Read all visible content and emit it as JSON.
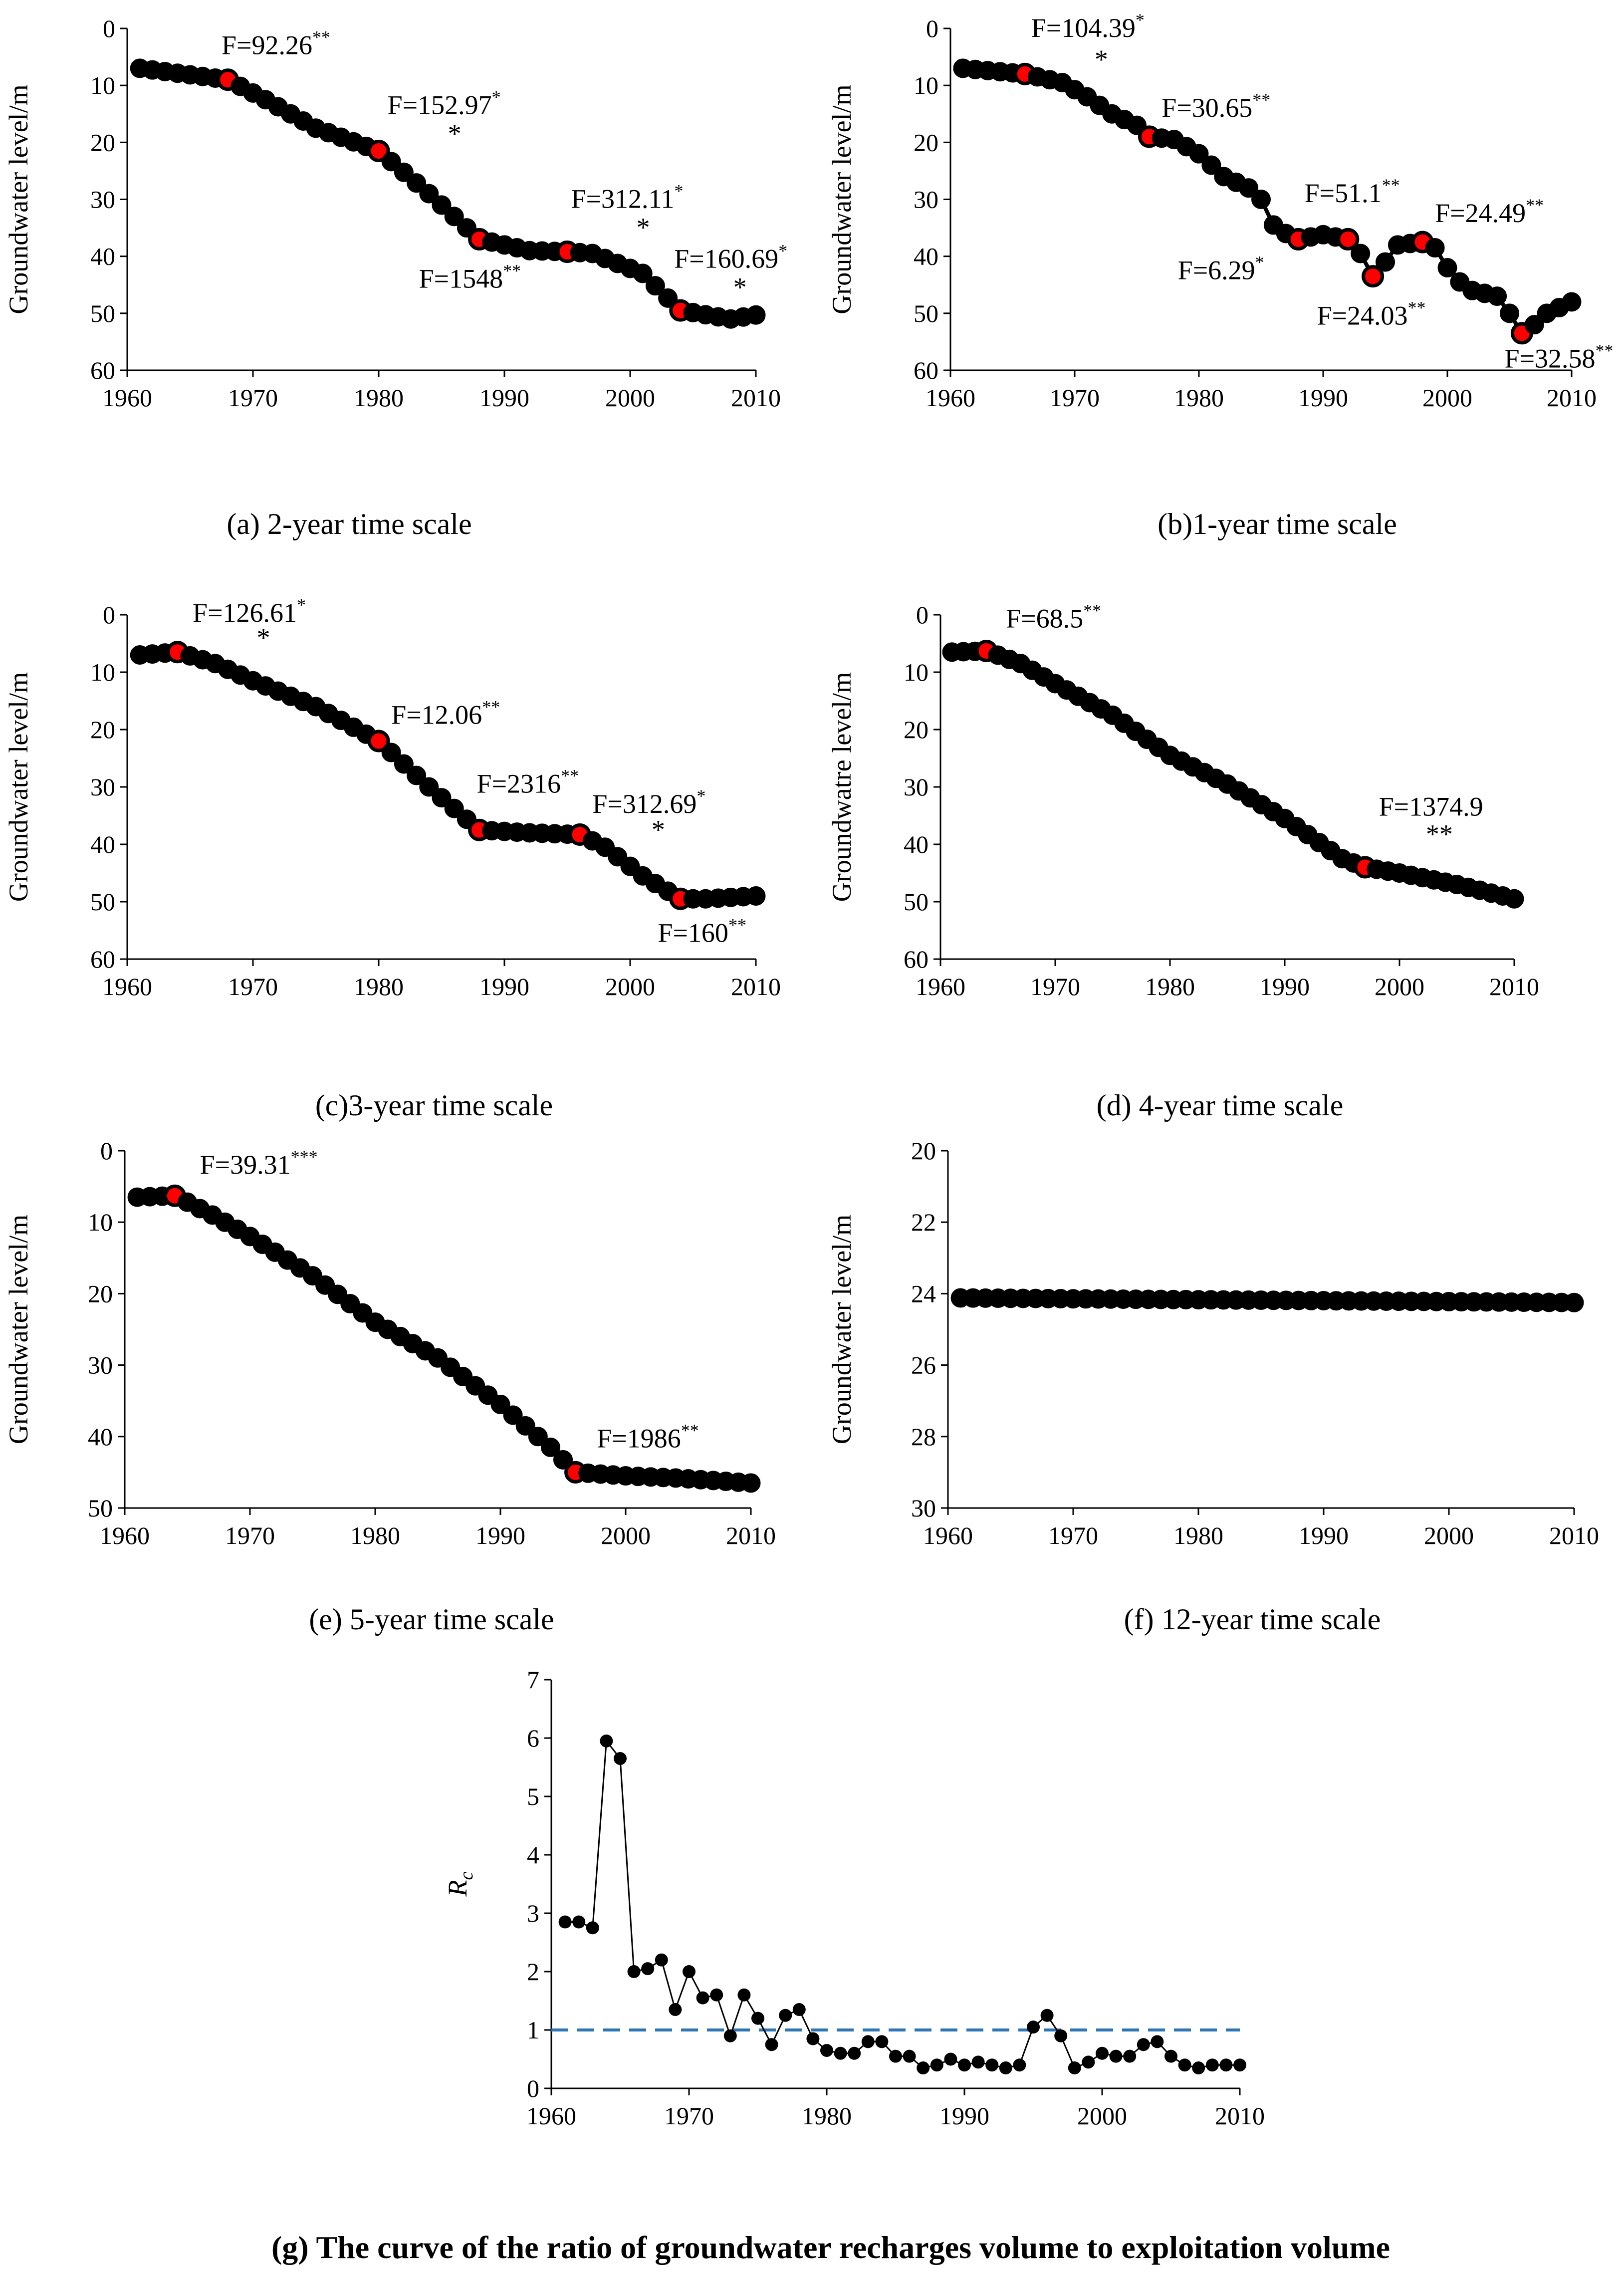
{
  "chart_data": [
    {
      "id": "a",
      "type": "scatter",
      "caption": "(a) 2-year time scale",
      "ylabel": "Groundwater level/m",
      "xlim": [
        1960,
        2010
      ],
      "ylim": [
        0,
        60
      ],
      "y_inverted": true,
      "xticks": [
        1960,
        1970,
        1980,
        1990,
        2000,
        2010
      ],
      "yticks": [
        0,
        10,
        20,
        30,
        40,
        50,
        60
      ],
      "x_years": [
        1961,
        2010
      ],
      "y_knots": [
        [
          1961,
          7.0
        ],
        [
          1968,
          9.0
        ],
        [
          1971,
          12.5
        ],
        [
          1975,
          17.5
        ],
        [
          1980,
          21.5
        ],
        [
          1984,
          29.0
        ],
        [
          1988,
          37.0
        ],
        [
          1992,
          39.0
        ],
        [
          1995,
          39.2
        ],
        [
          1997,
          39.5
        ],
        [
          2001,
          43.0
        ],
        [
          2004,
          49.5
        ],
        [
          2008,
          51.0
        ],
        [
          2010,
          50.3
        ]
      ],
      "breakpoints": [
        1968,
        1980,
        1988,
        1995,
        2004
      ],
      "annotations": [
        {
          "text": "F=92.26",
          "sup": "**",
          "x": 1967.5,
          "y": 4.5
        },
        {
          "text": "F=152.97",
          "sup": "*",
          "x": 1980.7,
          "y": 15.0
        },
        {
          "text": "*",
          "x": 1985.5,
          "y": 20.0
        },
        {
          "text": "F=1548",
          "sup": "**",
          "x": 1983.2,
          "y": 45.5
        },
        {
          "text": "F=312.11",
          "sup": "*",
          "x": 1995.3,
          "y": 31.5
        },
        {
          "text": "*",
          "x": 2000.5,
          "y": 36.5
        },
        {
          "text": "F=160.69",
          "sup": "*",
          "x": 2003.5,
          "y": 42.0
        },
        {
          "text": "*",
          "x": 2008.2,
          "y": 47.0
        }
      ]
    },
    {
      "id": "b",
      "type": "scatter",
      "caption": "(b)1-year time scale",
      "ylabel": "Groundwater level/m",
      "xlim": [
        1960,
        2010
      ],
      "ylim": [
        0,
        60
      ],
      "y_inverted": true,
      "xticks": [
        1960,
        1970,
        1980,
        1990,
        2000,
        2010
      ],
      "yticks": [
        0,
        10,
        20,
        30,
        40,
        50,
        60
      ],
      "x_years": [
        1961,
        2010
      ],
      "y_knots": [
        [
          1961,
          7.0
        ],
        [
          1963,
          7.4
        ],
        [
          1966,
          8.0
        ],
        [
          1969,
          9.5
        ],
        [
          1971,
          12.0
        ],
        [
          1973,
          15.0
        ],
        [
          1975,
          17.0
        ],
        [
          1976,
          19.0
        ],
        [
          1978,
          19.5
        ],
        [
          1980,
          22.0
        ],
        [
          1982,
          26.0
        ],
        [
          1984,
          28.0
        ],
        [
          1985,
          30.0
        ],
        [
          1986,
          34.5
        ],
        [
          1987,
          36.0
        ],
        [
          1988,
          37.0
        ],
        [
          1990,
          36.2
        ],
        [
          1992,
          37.0
        ],
        [
          1993,
          39.5
        ],
        [
          1994,
          43.5
        ],
        [
          1995,
          41.0
        ],
        [
          1996,
          38.0
        ],
        [
          1998,
          37.5
        ],
        [
          1999,
          38.5
        ],
        [
          2000,
          42.0
        ],
        [
          2001,
          44.5
        ],
        [
          2002,
          46.0
        ],
        [
          2004,
          47.0
        ],
        [
          2005,
          50.0
        ],
        [
          2006,
          53.5
        ],
        [
          2007,
          52.0
        ],
        [
          2008,
          50.0
        ],
        [
          2009,
          49.0
        ],
        [
          2010,
          48.0
        ]
      ],
      "breakpoints": [
        1966,
        1976,
        1988,
        1992,
        1994,
        1998,
        2006
      ],
      "annotations": [
        {
          "text": "F=104.39",
          "sup": "*",
          "x": 1966.5,
          "y": 1.5
        },
        {
          "text": "*",
          "x": 1971.6,
          "y": 7.0
        },
        {
          "text": "F=30.65",
          "sup": "**",
          "x": 1977.0,
          "y": 15.5
        },
        {
          "text": "F=51.1",
          "sup": "**",
          "x": 1988.5,
          "y": 30.5
        },
        {
          "text": "F=24.49",
          "sup": "**",
          "x": 1999.0,
          "y": 34.0
        },
        {
          "text": "F=6.29",
          "sup": "*",
          "x": 1978.3,
          "y": 44.0
        },
        {
          "text": "F=24.03",
          "sup": "**",
          "x": 1989.5,
          "y": 52.0
        },
        {
          "text": "F=32.58",
          "sup": "**",
          "x": 2004.6,
          "y": 59.5
        }
      ]
    },
    {
      "id": "c",
      "type": "scatter",
      "caption": "(c)3-year time scale",
      "ylabel": "Groundwater level/m",
      "xlim": [
        1960,
        2010
      ],
      "ylim": [
        0,
        60
      ],
      "y_inverted": true,
      "xticks": [
        1960,
        1970,
        1980,
        1990,
        2000,
        2010
      ],
      "yticks": [
        0,
        10,
        20,
        30,
        40,
        50,
        60
      ],
      "x_years": [
        1961,
        2010
      ],
      "y_knots": [
        [
          1961,
          7.0
        ],
        [
          1964,
          6.5
        ],
        [
          1967,
          8.5
        ],
        [
          1970,
          11.5
        ],
        [
          1975,
          16.0
        ],
        [
          1980,
          22.0
        ],
        [
          1984,
          30.0
        ],
        [
          1988,
          37.5
        ],
        [
          1992,
          38.0
        ],
        [
          1996,
          38.3
        ],
        [
          1998,
          40.5
        ],
        [
          2001,
          45.5
        ],
        [
          2004,
          49.5
        ],
        [
          2006,
          49.5
        ],
        [
          2010,
          49.0
        ]
      ],
      "breakpoints": [
        1964,
        1980,
        1988,
        1996,
        2004
      ],
      "annotations": [
        {
          "text": "F=126.61",
          "sup": "*",
          "x": 1965.2,
          "y": 1.2
        },
        {
          "text": "*",
          "x": 1970.3,
          "y": 5.5
        },
        {
          "text": "F=12.06",
          "sup": "**",
          "x": 1981.0,
          "y": 19.0
        },
        {
          "text": "F=2316",
          "sup": "**",
          "x": 1987.8,
          "y": 31.0
        },
        {
          "text": "F=312.69",
          "sup": "*",
          "x": 1997.0,
          "y": 34.5
        },
        {
          "text": "*",
          "x": 2001.7,
          "y": 39.0
        },
        {
          "text": "F=160",
          "sup": "**",
          "x": 2002.2,
          "y": 57.0
        }
      ]
    },
    {
      "id": "d",
      "type": "scatter",
      "caption": "(d) 4-year time scale",
      "ylabel": "Groundwatre level/m",
      "xlim": [
        1960,
        2010
      ],
      "ylim": [
        0,
        60
      ],
      "y_inverted": true,
      "xticks": [
        1960,
        1970,
        1980,
        1990,
        2000,
        2010
      ],
      "yticks": [
        0,
        10,
        20,
        30,
        40,
        50,
        60
      ],
      "x_years": [
        1961,
        2010
      ],
      "y_knots": [
        [
          1961,
          6.5
        ],
        [
          1964,
          6.3
        ],
        [
          1967,
          8.5
        ],
        [
          1970,
          12.0
        ],
        [
          1975,
          17.5
        ],
        [
          1980,
          24.5
        ],
        [
          1985,
          29.5
        ],
        [
          1990,
          35.5
        ],
        [
          1995,
          42.5
        ],
        [
          1997,
          44.0
        ],
        [
          2000,
          45.0
        ],
        [
          2005,
          47.0
        ],
        [
          2010,
          49.5
        ]
      ],
      "breakpoints": [
        1964,
        1997
      ],
      "annotations": [
        {
          "text": "F=68.5",
          "sup": "**",
          "x": 1965.7,
          "y": 2.2
        },
        {
          "text": "F=1374.9",
          "x": 1998.2,
          "y": 35.0
        },
        {
          "text": "**",
          "x": 2002.3,
          "y": 39.8
        }
      ]
    },
    {
      "id": "e",
      "type": "scatter",
      "caption": "(e) 5-year time scale",
      "ylabel": "Groundwater level/m",
      "xlim": [
        1960,
        2010
      ],
      "ylim": [
        0,
        50
      ],
      "y_inverted": true,
      "xticks": [
        1960,
        1970,
        1980,
        1990,
        2000,
        2010
      ],
      "yticks": [
        0,
        10,
        20,
        30,
        40,
        50
      ],
      "x_years": [
        1961,
        2010
      ],
      "y_knots": [
        [
          1961,
          6.5
        ],
        [
          1964,
          6.3
        ],
        [
          1967,
          9.0
        ],
        [
          1970,
          12.0
        ],
        [
          1975,
          17.5
        ],
        [
          1980,
          24.0
        ],
        [
          1985,
          29.0
        ],
        [
          1990,
          35.5
        ],
        [
          1994,
          41.5
        ],
        [
          1996,
          45.0
        ],
        [
          2000,
          45.5
        ],
        [
          2004,
          45.8
        ],
        [
          2010,
          46.5
        ]
      ],
      "breakpoints": [
        1964,
        1996
      ],
      "annotations": [
        {
          "text": "F=39.31",
          "sup": "***",
          "x": 1966.0,
          "y": 3.2
        },
        {
          "text": "F=1986",
          "sup": "**",
          "x": 1997.7,
          "y": 41.5
        }
      ]
    },
    {
      "id": "f",
      "type": "scatter",
      "caption": "(f) 12-year time scale",
      "ylabel": "Groundwater level/m",
      "xlim": [
        1960,
        2010
      ],
      "ylim": [
        20,
        30
      ],
      "y_inverted": true,
      "xticks": [
        1960,
        1970,
        1980,
        1990,
        2000,
        2010
      ],
      "yticks": [
        20,
        22,
        24,
        26,
        28,
        30
      ],
      "x_years": [
        1961,
        2010
      ],
      "y_knots": [
        [
          1961,
          24.12
        ],
        [
          2010,
          24.25
        ]
      ],
      "breakpoints": [],
      "annotations": []
    },
    {
      "id": "g",
      "type": "line",
      "caption": "(g) The curve of the ratio of groundwater recharges volume to exploitation volume",
      "ylabel": "R",
      "ylabel_sub": "c",
      "xlim": [
        1960,
        2010
      ],
      "ylim": [
        0,
        7
      ],
      "y_inverted": false,
      "xticks": [
        1960,
        1970,
        1980,
        1990,
        2000,
        2010
      ],
      "yticks": [
        0,
        1,
        2,
        3,
        4,
        5,
        6,
        7
      ],
      "reference_line": 1,
      "x": [
        1961,
        1962,
        1963,
        1964,
        1965,
        1966,
        1967,
        1968,
        1969,
        1970,
        1971,
        1972,
        1973,
        1974,
        1975,
        1976,
        1977,
        1978,
        1979,
        1980,
        1981,
        1982,
        1983,
        1984,
        1985,
        1986,
        1987,
        1988,
        1989,
        1990,
        1991,
        1992,
        1993,
        1994,
        1995,
        1996,
        1997,
        1998,
        1999,
        2000,
        2001,
        2002,
        2003,
        2004,
        2005,
        2006,
        2007,
        2008,
        2009,
        2010
      ],
      "values": [
        2.85,
        2.85,
        2.75,
        5.95,
        5.65,
        2.0,
        2.05,
        2.2,
        1.35,
        2.0,
        1.55,
        1.6,
        0.9,
        1.6,
        1.2,
        0.75,
        1.25,
        1.35,
        0.85,
        0.65,
        0.6,
        0.6,
        0.8,
        0.8,
        0.55,
        0.55,
        0.35,
        0.4,
        0.5,
        0.4,
        0.45,
        0.4,
        0.35,
        0.4,
        1.05,
        1.25,
        0.9,
        0.35,
        0.45,
        0.6,
        0.55,
        0.55,
        0.75,
        0.8,
        0.55,
        0.4,
        0.35,
        0.4,
        0.4,
        0.4
      ]
    }
  ]
}
